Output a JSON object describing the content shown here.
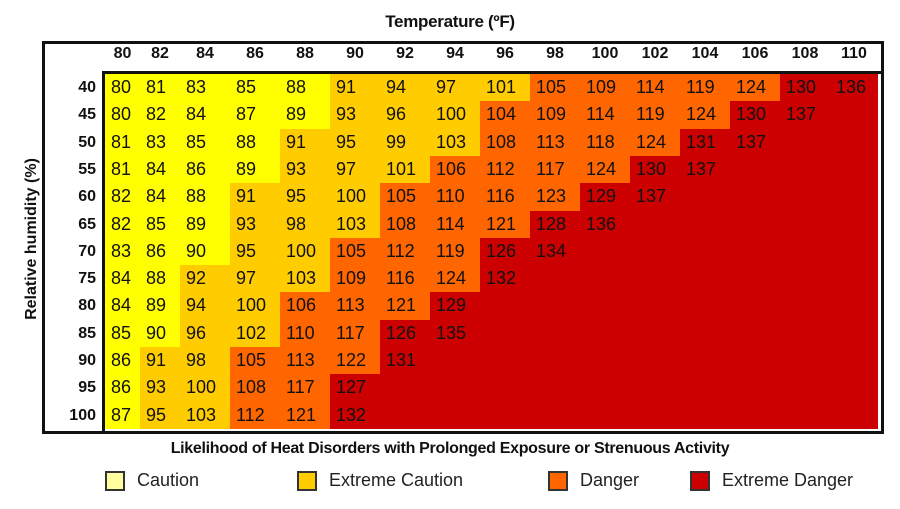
{
  "chart_data": {
    "type": "heatmap",
    "title": "Temperature (ºF)",
    "xlabel": "Temperature (ºF)",
    "ylabel": "Relative humidity (%)",
    "x": [
      "80",
      "82",
      "84",
      "86",
      "88",
      "90",
      "92",
      "94",
      "96",
      "98",
      "100",
      "102",
      "104",
      "106",
      "108",
      "110"
    ],
    "y": [
      "40",
      "45",
      "50",
      "55",
      "60",
      "65",
      "70",
      "75",
      "80",
      "85",
      "90",
      "95",
      "100"
    ],
    "values": [
      [
        80,
        81,
        83,
        85,
        88,
        91,
        94,
        97,
        101,
        105,
        109,
        114,
        119,
        124,
        130,
        136
      ],
      [
        80,
        82,
        84,
        87,
        89,
        93,
        96,
        100,
        104,
        109,
        114,
        119,
        124,
        130,
        137
      ],
      [
        81,
        83,
        85,
        88,
        91,
        95,
        99,
        103,
        108,
        113,
        118,
        124,
        131,
        137
      ],
      [
        81,
        84,
        86,
        89,
        93,
        97,
        101,
        106,
        112,
        117,
        124,
        130,
        137
      ],
      [
        82,
        84,
        88,
        91,
        95,
        100,
        105,
        110,
        116,
        123,
        129,
        137
      ],
      [
        82,
        85,
        89,
        93,
        98,
        103,
        108,
        114,
        121,
        128,
        136
      ],
      [
        83,
        86,
        90,
        95,
        100,
        105,
        112,
        119,
        126,
        134
      ],
      [
        84,
        88,
        92,
        97,
        103,
        109,
        116,
        124,
        132
      ],
      [
        84,
        89,
        94,
        100,
        106,
        113,
        121,
        129
      ],
      [
        85,
        90,
        96,
        102,
        110,
        117,
        126,
        135
      ],
      [
        86,
        91,
        98,
        105,
        113,
        122,
        131
      ],
      [
        86,
        93,
        100,
        108,
        117,
        127
      ],
      [
        87,
        95,
        103,
        112,
        121,
        132
      ]
    ],
    "legend_title": "Likelihood of Heat Disorders with Prolonged Exposure or Strenuous Activity",
    "categories": [
      {
        "name": "Caution",
        "max": 90,
        "color": "#ffff00",
        "swatch": "#ffffa0"
      },
      {
        "name": "Extreme Caution",
        "max": 103,
        "color": "#ffcc00",
        "swatch": "#ffcc00"
      },
      {
        "name": "Danger",
        "max": 125,
        "color": "#ff6600",
        "swatch": "#ff6600"
      },
      {
        "name": "Extreme Danger",
        "max": 999,
        "color": "#cc0000",
        "swatch": "#cc0000"
      }
    ],
    "legend_placement": "bottom"
  }
}
